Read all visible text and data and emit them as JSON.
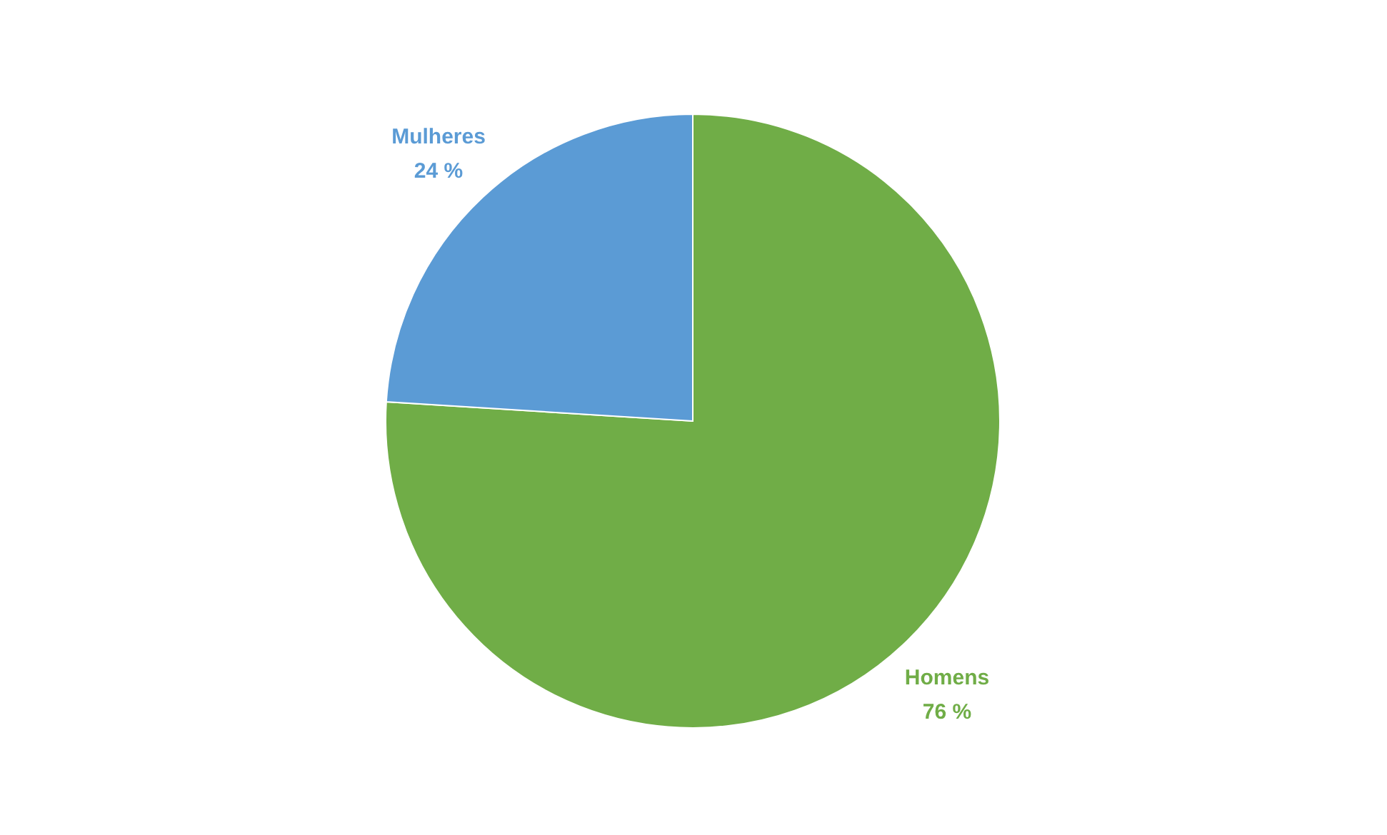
{
  "chart_data": {
    "type": "pie",
    "categories": [
      "Homens",
      "Mulheres"
    ],
    "values": [
      76,
      24
    ],
    "colors": [
      "#70ad47",
      "#5b9bd5"
    ],
    "value_labels": [
      "76 %",
      "24 %"
    ],
    "legend": false
  }
}
